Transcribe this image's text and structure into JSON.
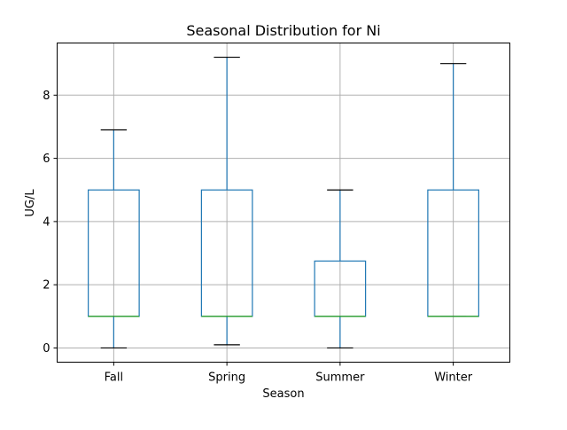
{
  "chart_data": {
    "type": "box",
    "title": "Seasonal Distribution for Ni",
    "xlabel": "Season",
    "ylabel": "UG/L",
    "ylim": [
      -0.45,
      9.65
    ],
    "yticks": [
      0,
      2,
      4,
      6,
      8
    ],
    "grid": true,
    "categories": [
      "Fall",
      "Spring",
      "Summer",
      "Winter"
    ],
    "boxes": [
      {
        "category": "Fall",
        "whisker_low": 0.0,
        "q1": 1.0,
        "median": 1.0,
        "q3": 5.0,
        "whisker_high": 6.9
      },
      {
        "category": "Spring",
        "whisker_low": 0.1,
        "q1": 1.0,
        "median": 1.0,
        "q3": 5.0,
        "whisker_high": 9.2
      },
      {
        "category": "Summer",
        "whisker_low": 0.0,
        "q1": 1.0,
        "median": 1.0,
        "q3": 2.75,
        "whisker_high": 5.0
      },
      {
        "category": "Winter",
        "whisker_low": 1.0,
        "q1": 1.0,
        "median": 1.0,
        "q3": 5.0,
        "whisker_high": 9.0
      }
    ],
    "colors": {
      "box": "#1f77b4",
      "median": "#2ca02c",
      "cap": "#000000",
      "grid": "#b0b0b0",
      "axes": "#000000"
    }
  }
}
